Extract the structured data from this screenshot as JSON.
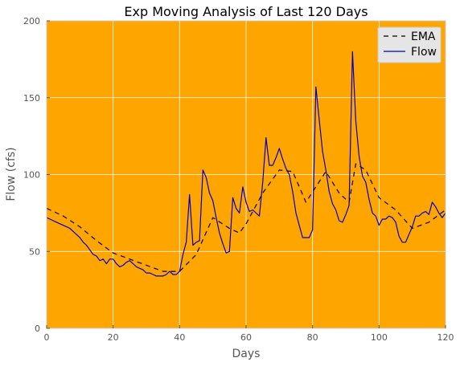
{
  "chart_data": {
    "type": "line",
    "title": "Exp Moving Analysis of Last 120 Days",
    "xlabel": "Days",
    "ylabel": "Flow (cfs)",
    "xlim": [
      0,
      120
    ],
    "ylim": [
      0,
      200
    ],
    "xticks": [
      "0",
      "20",
      "40",
      "60",
      "80",
      "100",
      "120"
    ],
    "yticks": [
      "0",
      "50",
      "100",
      "150",
      "200"
    ],
    "grid": true,
    "legend_position": "top-right",
    "plot_background": "#FFA500",
    "series": [
      {
        "name": "EMA",
        "color": "#000000",
        "style": "dashed",
        "x": [
          0,
          5,
          10,
          15,
          20,
          25,
          30,
          35,
          40,
          45,
          50,
          55,
          58,
          60,
          65,
          70,
          74,
          78,
          81,
          84,
          88,
          91,
          93,
          96,
          100,
          105,
          110,
          115,
          120
        ],
        "y": [
          78,
          73,
          66,
          57,
          49,
          45,
          41,
          37,
          37,
          48,
          72,
          65,
          62,
          68,
          88,
          103,
          102,
          82,
          92,
          102,
          88,
          82,
          107,
          103,
          85,
          77,
          65,
          69,
          77
        ]
      },
      {
        "name": "Flow",
        "color": "#0000CC",
        "style": "solid",
        "x": [
          0,
          1,
          2,
          3,
          4,
          5,
          6,
          7,
          8,
          9,
          10,
          11,
          12,
          13,
          14,
          15,
          16,
          17,
          18,
          19,
          20,
          21,
          22,
          23,
          24,
          25,
          26,
          27,
          28,
          29,
          30,
          31,
          32,
          33,
          34,
          35,
          36,
          37,
          38,
          39,
          40,
          41,
          42,
          43,
          44,
          45,
          46,
          47,
          48,
          49,
          50,
          51,
          52,
          53,
          54,
          55,
          56,
          57,
          58,
          59,
          60,
          61,
          62,
          63,
          64,
          65,
          66,
          67,
          68,
          69,
          70,
          71,
          72,
          73,
          74,
          75,
          76,
          77,
          78,
          79,
          80,
          81,
          82,
          83,
          84,
          85,
          86,
          87,
          88,
          89,
          90,
          91,
          92,
          93,
          94,
          95,
          96,
          97,
          98,
          99,
          100,
          101,
          102,
          103,
          104,
          105,
          106,
          107,
          108,
          109,
          110,
          111,
          112,
          113,
          114,
          115,
          116,
          117,
          118,
          119,
          120
        ],
        "y": [
          72,
          71,
          70,
          69,
          68,
          67,
          66,
          65,
          63,
          61,
          59,
          56,
          54,
          51,
          48,
          47,
          44,
          45,
          42,
          45,
          45,
          42,
          40,
          41,
          43,
          44,
          42,
          40,
          39,
          38,
          36,
          36,
          35,
          34,
          34,
          34,
          35,
          37,
          35,
          35,
          37,
          48,
          56,
          87,
          54,
          56,
          57,
          103,
          98,
          88,
          83,
          72,
          62,
          55,
          49,
          50,
          85,
          78,
          75,
          92,
          82,
          76,
          77,
          75,
          73,
          95,
          124,
          106,
          106,
          111,
          117,
          110,
          104,
          100,
          89,
          75,
          67,
          59,
          59,
          59,
          64,
          157,
          136,
          115,
          103,
          89,
          81,
          77,
          70,
          69,
          74,
          80,
          180,
          135,
          112,
          99,
          95,
          84,
          75,
          73,
          67,
          71,
          71,
          73,
          72,
          69,
          60,
          56,
          56,
          61,
          66,
          73,
          73,
          75,
          76,
          74,
          82,
          79,
          75,
          72,
          75
        ]
      }
    ]
  }
}
